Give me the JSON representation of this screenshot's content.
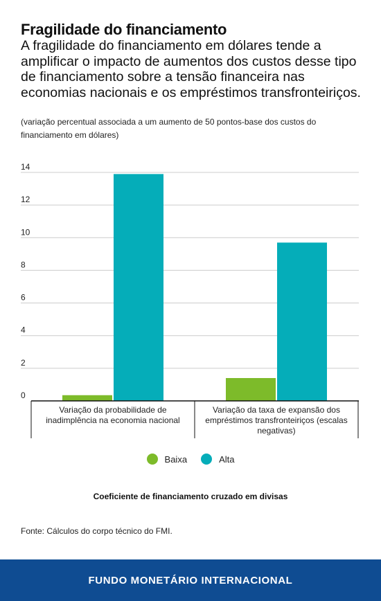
{
  "header": {
    "title": "Fragilidade do financiamento",
    "subtitle": "A fragilidade do financiamento em dólares tende a amplificar o impacto de aumentos dos custos desse tipo de financiamento sobre a tensão financeira nas economias nacionais e os empréstimos transfronteiriços.",
    "note": "(variação percentual associada a um aumento de 50 pontos-base dos custos do financiamento em dólares)"
  },
  "chart_data": {
    "type": "bar",
    "categories": [
      "Variação da probabilidade de inadimplência na economia nacional",
      "Variação da taxa de expansão dos empréstimos transfronteiriços (escalas negativas)"
    ],
    "category_lines": [
      [
        "Variação da probabilidade de",
        "inadimplência na economia nacional"
      ],
      [
        "Variação da taxa de expansão dos",
        "empréstimos transfronteiriços (escalas",
        "negativas)"
      ]
    ],
    "series": [
      {
        "name": "Baixa",
        "color": "#7dbb2a",
        "values": [
          0.35,
          1.4
        ]
      },
      {
        "name": "Alta",
        "color": "#05adb9",
        "values": [
          13.9,
          9.7
        ]
      }
    ],
    "xlabel": "Coeficiente de financiamento cruzado em divisas",
    "ylabel": "",
    "ylim": [
      0,
      14
    ],
    "yticks": [
      0,
      2,
      4,
      6,
      8,
      10,
      12,
      14
    ],
    "grid": true,
    "legend_position": "bottom"
  },
  "source": "Fonte: Cálculos do corpo técnico do FMI.",
  "footer": {
    "text": "FUNDO MONETÁRIO INTERNACIONAL",
    "color": "#0f4c92"
  }
}
